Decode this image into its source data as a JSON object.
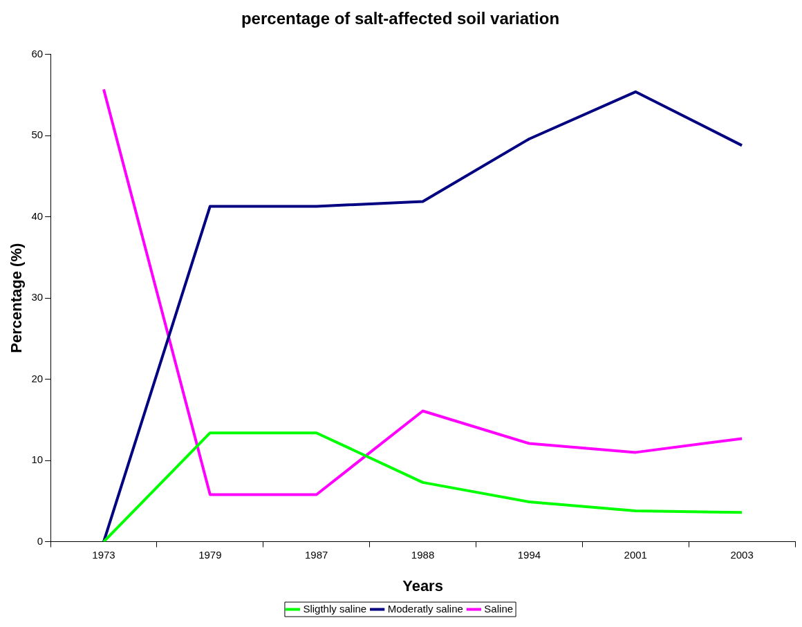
{
  "chart_data": {
    "type": "line",
    "title": "percentage of salt-affected soil variation",
    "xlabel": "Years",
    "ylabel": "Percentage (%)",
    "categories": [
      "1973",
      "1979",
      "1987",
      "1988",
      "1994",
      "2001",
      "2003"
    ],
    "series": [
      {
        "name": "Sligthly saline",
        "color": "#00ff00",
        "values": [
          0,
          13.4,
          13.4,
          7.3,
          4.9,
          3.8,
          3.6
        ]
      },
      {
        "name": "Moderatly saline",
        "color": "#000080",
        "values": [
          0,
          41.3,
          41.3,
          41.9,
          49.6,
          55.4,
          48.8
        ]
      },
      {
        "name": "Saline",
        "color": "#ff00ff",
        "values": [
          55.7,
          5.8,
          5.8,
          16.1,
          12.1,
          11.0,
          12.7
        ]
      }
    ],
    "ylim": [
      0,
      60
    ],
    "yticks": [
      0,
      10,
      20,
      30,
      40,
      50,
      60
    ],
    "grid": false,
    "legend": "bottom",
    "marker": "none",
    "line_style": "solid"
  }
}
